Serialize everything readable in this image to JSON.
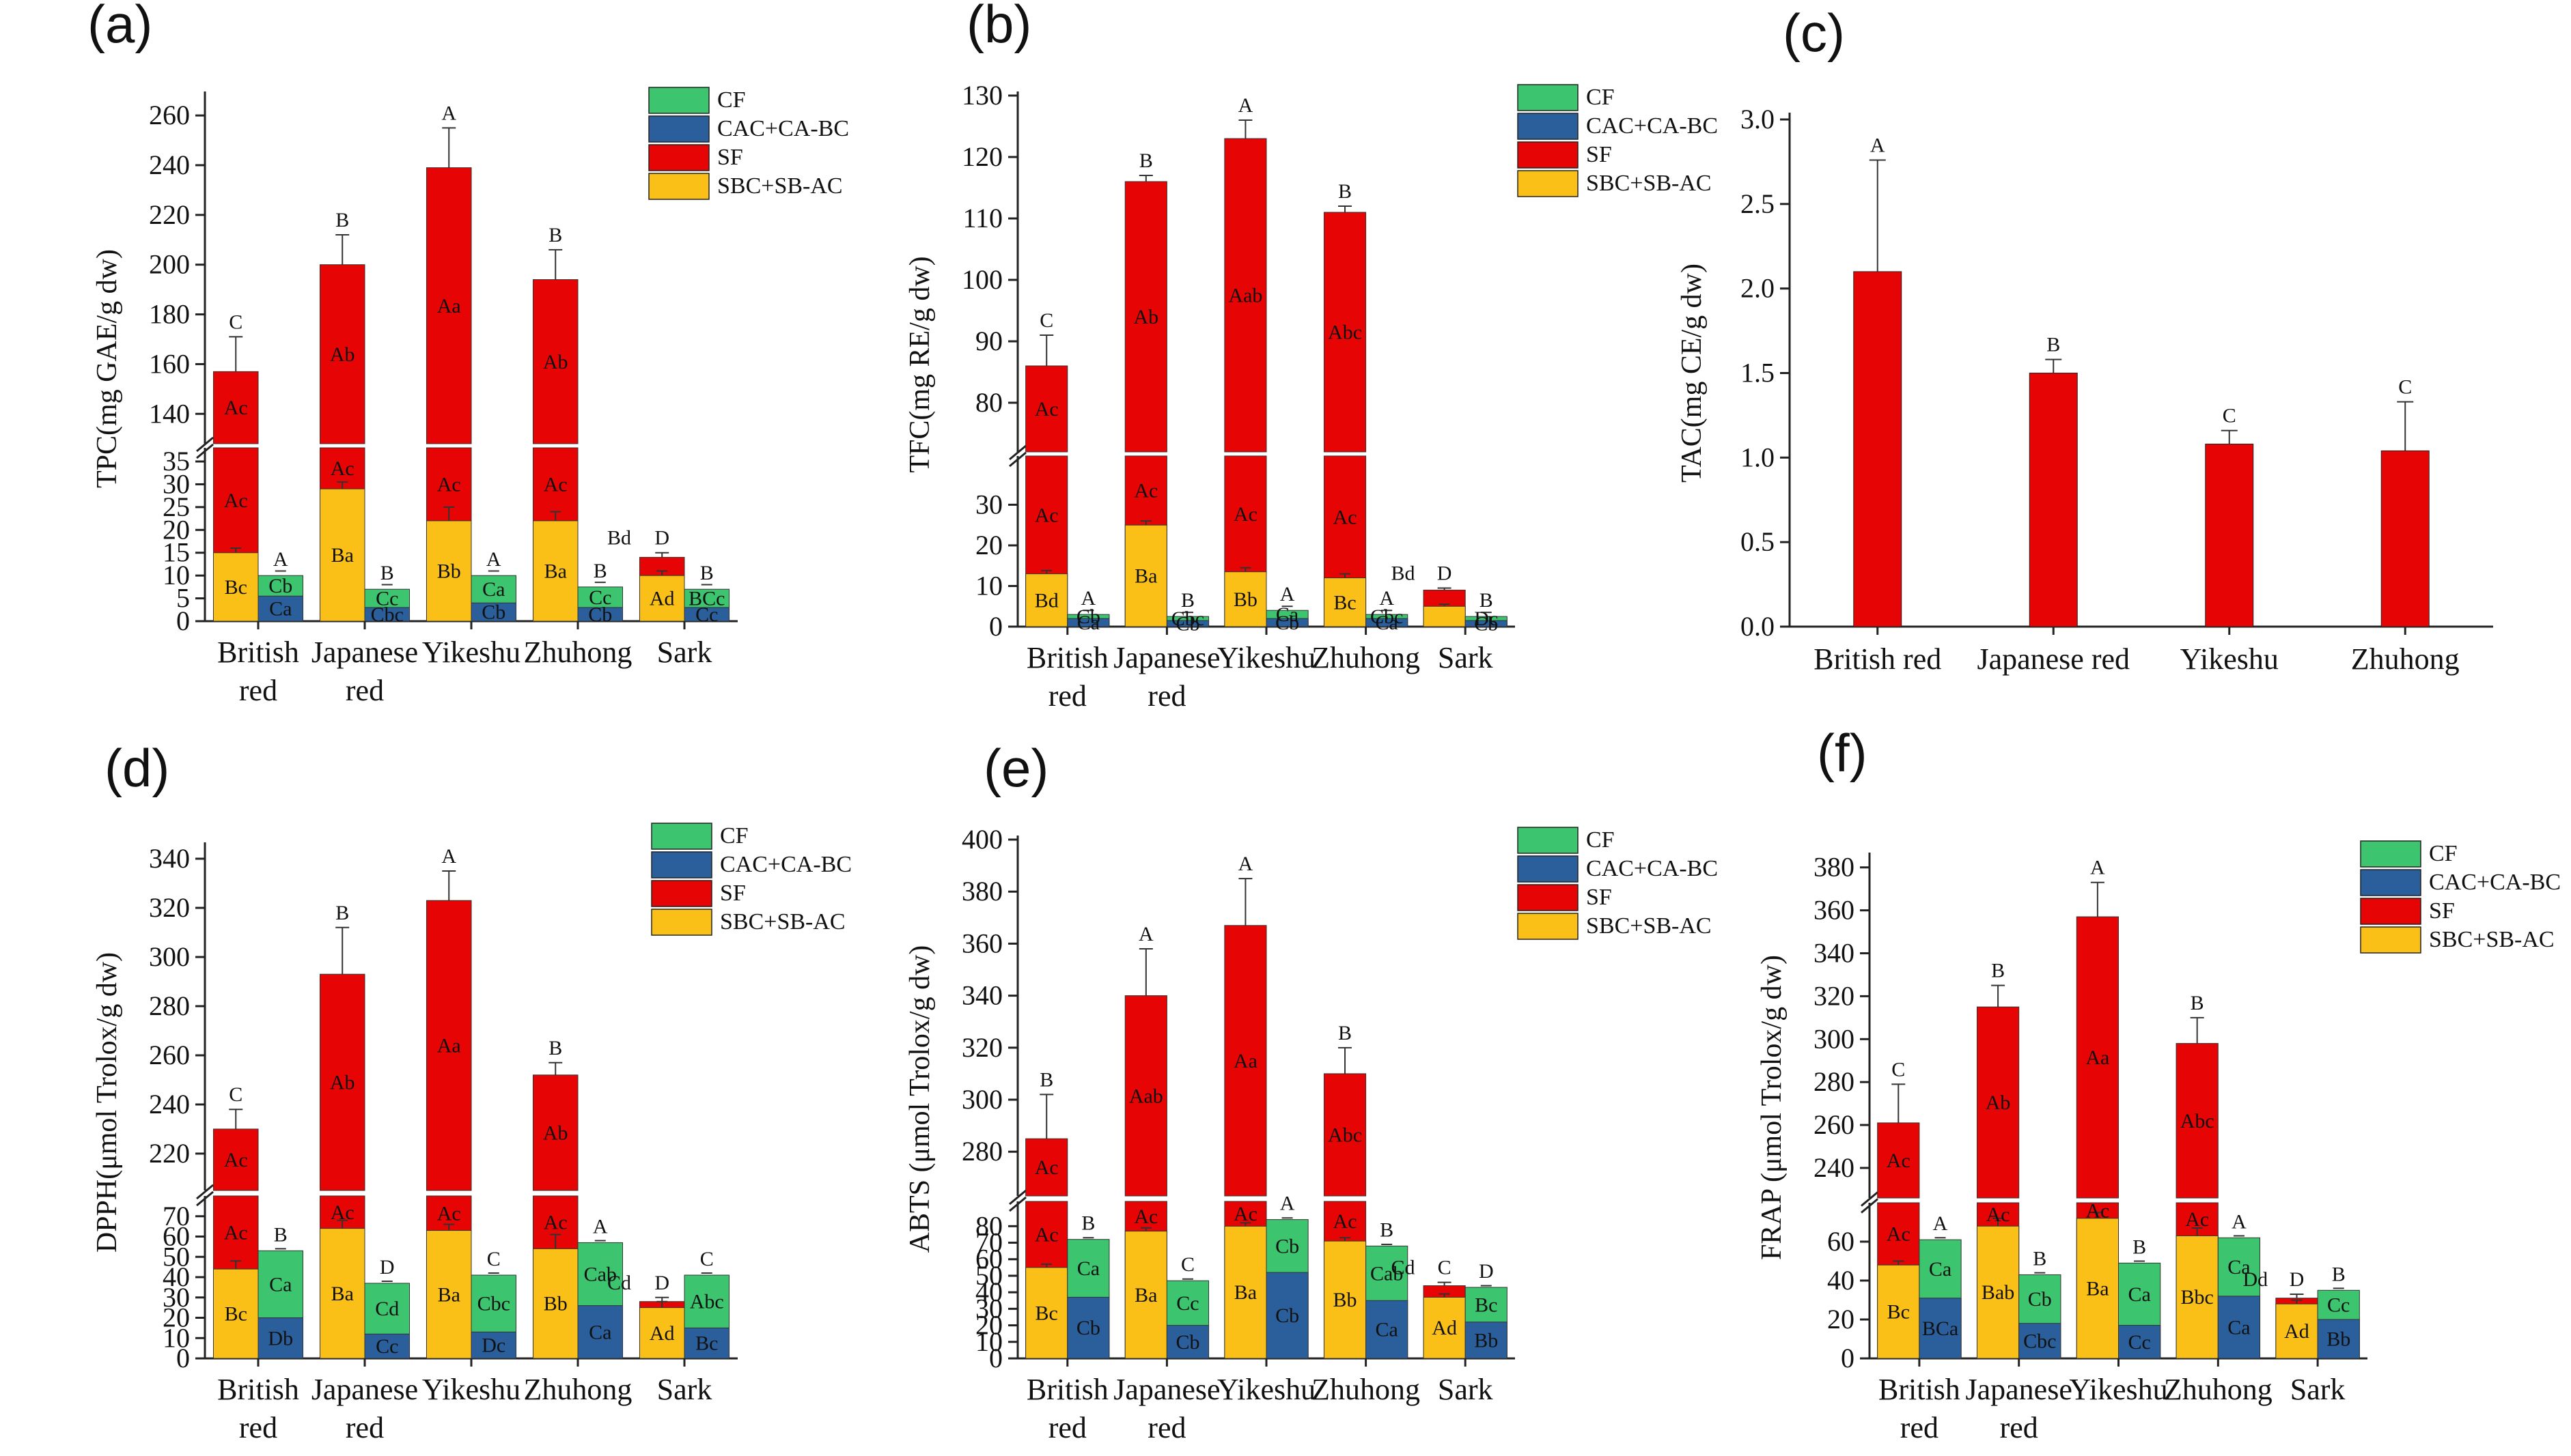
{
  "colors": {
    "CF": "#3cc46e",
    "CAC": "#2a5f9b",
    "SF": "#e60404",
    "SBC": "#fbc017"
  },
  "legend": [
    "CF",
    "CAC+CA-BC",
    "SF",
    "SBC+SB-AC"
  ],
  "chart_data": [
    {
      "panel": "(a)",
      "type": "bar",
      "stacked": true,
      "broken_axis": true,
      "ylabel": "TPC(mg GAE/g dw)",
      "categories": [
        "British red",
        "Japanese red",
        "Yikeshu",
        "Zhuhong",
        "Sark"
      ],
      "cat_lines": [
        [
          "British",
          "red"
        ],
        [
          "Japanese",
          "red"
        ],
        [
          "Yikeshu"
        ],
        [
          "Zhuhong"
        ],
        [
          "Sark"
        ]
      ],
      "lower": {
        "ylim": [
          0,
          38
        ],
        "ticks": [
          0,
          5,
          10,
          15,
          20,
          25,
          30,
          35
        ]
      },
      "upper": {
        "ylim": [
          128,
          268
        ],
        "ticks": [
          140,
          160,
          180,
          200,
          220,
          240,
          260
        ]
      },
      "series": [
        {
          "name": "SBC+SB-AC",
          "values": [
            15,
            29,
            22,
            22,
            10
          ]
        },
        {
          "name": "SF",
          "values": [
            157,
            200,
            239,
            194,
            14
          ]
        },
        {
          "name": "CAC+CA-BC",
          "values": [
            5.5,
            3,
            4,
            3,
            3
          ]
        },
        {
          "name": "CF",
          "values": [
            10,
            7,
            10,
            7.5,
            7
          ]
        }
      ],
      "top_errors": [
        14,
        12,
        16,
        12,
        1
      ],
      "sb_errors": [
        1,
        1.5,
        3,
        2,
        1
      ],
      "top_letters": [
        "C",
        "B",
        "A",
        "B",
        "D"
      ],
      "c_top_letters": [
        "A",
        "B",
        "A",
        "B",
        "B"
      ],
      "sf_letters": [
        "Ac",
        "Ab",
        "Aa",
        "Ab",
        ""
      ],
      "sb_letters": [
        "Bc",
        "Ba",
        "Bb",
        "Ba",
        "Ad"
      ],
      "cf_letters": [
        "Cb",
        "Cc",
        "Ca",
        "Cc",
        "BCc"
      ],
      "cac_letters": [
        "Ca",
        "Cbc",
        "Cb",
        "Cb",
        "Cc"
      ],
      "extra_letters": [
        "",
        "",
        "",
        "",
        "Bd"
      ]
    },
    {
      "panel": "(b)",
      "type": "bar",
      "stacked": true,
      "broken_axis": true,
      "ylabel": "TFC(mg RE/g dw)",
      "categories": [
        "British red",
        "Japanese red",
        "Yikeshu",
        "Zhuhong",
        "Sark"
      ],
      "cat_lines": [
        [
          "British",
          "red"
        ],
        [
          "Japanese",
          "red"
        ],
        [
          "Yikeshu"
        ],
        [
          "Zhuhong"
        ],
        [
          "Sark"
        ]
      ],
      "lower": {
        "ylim": [
          0,
          42
        ],
        "ticks": [
          0,
          10,
          20,
          30
        ]
      },
      "upper": {
        "ylim": [
          72,
          130
        ],
        "ticks": [
          80,
          90,
          100,
          110,
          120,
          130
        ]
      },
      "series": [
        {
          "name": "SBC+SB-AC",
          "values": [
            13,
            25,
            13.5,
            12,
            5
          ]
        },
        {
          "name": "SF",
          "values": [
            86,
            116,
            123,
            111,
            9
          ]
        },
        {
          "name": "CAC+CA-BC",
          "values": [
            2,
            1.5,
            2,
            2,
            1.5
          ]
        },
        {
          "name": "CF",
          "values": [
            3,
            2.5,
            4,
            3,
            2.5
          ]
        }
      ],
      "top_errors": [
        5,
        1,
        3,
        1,
        0.5
      ],
      "sb_errors": [
        0.8,
        1,
        1,
        1,
        0.5
      ],
      "top_letters": [
        "C",
        "B",
        "A",
        "B",
        "D"
      ],
      "c_top_letters": [
        "A",
        "B",
        "A",
        "A",
        "B"
      ],
      "sf_letters": [
        "Ac",
        "Ab",
        "Aab",
        "Abc",
        ""
      ],
      "sb_letters": [
        "Bd",
        "Ba",
        "Bb",
        "Bc",
        ""
      ],
      "cf_letters": [
        "Cb",
        "Cbc",
        "Ca",
        "Cbc",
        "Dc"
      ],
      "cac_letters": [
        "Ca",
        "Cb",
        "Cb",
        "Ca",
        "Cb"
      ],
      "extra_letters": [
        "",
        "",
        "",
        "",
        "Bd"
      ]
    },
    {
      "panel": "(c)",
      "type": "bar",
      "ylabel": "TAC(mg CE/g dw)",
      "categories": [
        "British red",
        "Japanese red",
        "Yikeshu",
        "Zhuhong"
      ],
      "ylim": [
        0,
        3.0
      ],
      "ticks": [
        0.0,
        0.5,
        1.0,
        1.5,
        2.0,
        2.5,
        3.0
      ],
      "values": [
        2.1,
        1.5,
        1.08,
        1.04
      ],
      "errors": [
        0.66,
        0.08,
        0.08,
        0.29
      ],
      "letters": [
        "A",
        "B",
        "C",
        "C"
      ]
    },
    {
      "panel": "(d)",
      "type": "bar",
      "stacked": true,
      "broken_axis": true,
      "ylabel": "DPPH(μmol Trolox/g dw)",
      "categories": [
        "British red",
        "Japanese red",
        "Yikeshu",
        "Zhuhong",
        "Sark"
      ],
      "cat_lines": [
        [
          "British",
          "red"
        ],
        [
          "Japanese",
          "red"
        ],
        [
          "Yikeshu"
        ],
        [
          "Zhuhong"
        ],
        [
          "Sark"
        ]
      ],
      "lower": {
        "ylim": [
          0,
          80
        ],
        "ticks": [
          0,
          10,
          20,
          30,
          40,
          50,
          60,
          70
        ]
      },
      "upper": {
        "ylim": [
          205,
          345
        ],
        "ticks": [
          220,
          240,
          260,
          280,
          300,
          320,
          340
        ]
      },
      "series": [
        {
          "name": "SBC+SB-AC",
          "values": [
            44,
            64,
            63,
            54,
            25
          ]
        },
        {
          "name": "SF",
          "values": [
            230,
            293,
            323,
            252,
            28
          ]
        },
        {
          "name": "CAC+CA-BC",
          "values": [
            20,
            12,
            13,
            26,
            15
          ]
        },
        {
          "name": "CF",
          "values": [
            53,
            37,
            41,
            57,
            41
          ]
        }
      ],
      "top_errors": [
        8,
        19,
        12,
        5,
        2
      ],
      "sb_errors": [
        4,
        4,
        3,
        7,
        3
      ],
      "top_letters": [
        "C",
        "B",
        "A",
        "B",
        "D"
      ],
      "c_top_letters": [
        "B",
        "D",
        "C",
        "A",
        "C"
      ],
      "sf_letters": [
        "Ac",
        "Ab",
        "Aa",
        "Ab",
        ""
      ],
      "sb_letters": [
        "Bc",
        "Ba",
        "Ba",
        "Bb",
        "Ad"
      ],
      "cf_letters": [
        "Ca",
        "Cd",
        "Cbc",
        "Cab",
        "Abc"
      ],
      "cac_letters": [
        "Db",
        "Cc",
        "Dc",
        "Ca",
        "Bc"
      ],
      "extra_letters": [
        "",
        "",
        "",
        "",
        "Cd"
      ]
    },
    {
      "panel": "(e)",
      "type": "bar",
      "stacked": true,
      "broken_axis": true,
      "ylabel": "ABTS (μmol Trolox/g dw)",
      "categories": [
        "British red",
        "Japanese red",
        "Yikeshu",
        "Zhuhong",
        "Sark"
      ],
      "cat_lines": [
        [
          "British",
          "red"
        ],
        [
          "Japanese",
          "red"
        ],
        [
          "Yikeshu"
        ],
        [
          "Zhuhong"
        ],
        [
          "Sark"
        ]
      ],
      "lower": {
        "ylim": [
          0,
          95
        ],
        "ticks": [
          0,
          10,
          20,
          30,
          40,
          50,
          60,
          70,
          80
        ]
      },
      "upper": {
        "ylim": [
          263,
          400
        ],
        "ticks": [
          280,
          300,
          320,
          340,
          360,
          380,
          400
        ]
      },
      "series": [
        {
          "name": "SBC+SB-AC",
          "values": [
            55,
            77,
            80,
            71,
            37
          ]
        },
        {
          "name": "SF",
          "values": [
            285,
            340,
            367,
            310,
            44
          ]
        },
        {
          "name": "CAC+CA-BC",
          "values": [
            37,
            20,
            52,
            35,
            22
          ]
        },
        {
          "name": "CF",
          "values": [
            72,
            47,
            84,
            68,
            43
          ]
        }
      ],
      "top_errors": [
        17,
        18,
        18,
        10,
        2
      ],
      "sb_errors": [
        2,
        2,
        2,
        2,
        2
      ],
      "top_letters": [
        "B",
        "A",
        "A",
        "B",
        "C"
      ],
      "c_top_letters": [
        "B",
        "C",
        "A",
        "B",
        "D"
      ],
      "sf_letters": [
        "Ac",
        "Aab",
        "Aa",
        "Abc",
        ""
      ],
      "sb_letters": [
        "Bc",
        "Ba",
        "Ba",
        "Bb",
        "Ad"
      ],
      "cf_letters": [
        "Ca",
        "Cc",
        "Cb",
        "Cab",
        "Bc"
      ],
      "cac_letters": [
        "Cb",
        "Cb",
        "Cb",
        "Ca",
        "Bb"
      ],
      "extra_letters": [
        "",
        "",
        "",
        "",
        "Cd"
      ]
    },
    {
      "panel": "(f)",
      "type": "bar",
      "stacked": true,
      "broken_axis": true,
      "ylabel": "FRAP (μmol Trolox/g dw)",
      "categories": [
        "British red",
        "Japanese red",
        "Yikeshu",
        "Zhuhong",
        "Sark"
      ],
      "cat_lines": [
        [
          "British",
          "red"
        ],
        [
          "Japanese",
          "red"
        ],
        [
          "Yikeshu"
        ],
        [
          "Zhuhong"
        ],
        [
          "Sark"
        ]
      ],
      "lower": {
        "ylim": [
          0,
          80
        ],
        "ticks": [
          0,
          20,
          40,
          60
        ]
      },
      "upper": {
        "ylim": [
          226,
          385
        ],
        "ticks": [
          240,
          260,
          280,
          300,
          320,
          340,
          360,
          380
        ]
      },
      "series": [
        {
          "name": "SBC+SB-AC",
          "values": [
            48,
            68,
            72,
            63,
            28
          ]
        },
        {
          "name": "SF",
          "values": [
            261,
            315,
            357,
            298,
            31
          ]
        },
        {
          "name": "CAC+CA-BC",
          "values": [
            31,
            18,
            17,
            32,
            20
          ]
        },
        {
          "name": "CF",
          "values": [
            61,
            43,
            49,
            62,
            35
          ]
        }
      ],
      "top_errors": [
        18,
        10,
        16,
        12,
        2
      ],
      "sb_errors": [
        2,
        4,
        3,
        4,
        2
      ],
      "top_letters": [
        "C",
        "B",
        "A",
        "B",
        "D"
      ],
      "c_top_letters": [
        "A",
        "B",
        "B",
        "A",
        "B"
      ],
      "sf_letters": [
        "Ac",
        "Ab",
        "Aa",
        "Abc",
        ""
      ],
      "sb_letters": [
        "Bc",
        "Bab",
        "Ba",
        "Bbc",
        "Ad"
      ],
      "cf_letters": [
        "Ca",
        "Cb",
        "Ca",
        "Ca",
        "Cc"
      ],
      "cac_letters": [
        "BCa",
        "Cbc",
        "Cc",
        "Ca",
        "Bb"
      ],
      "extra_letters": [
        "",
        "",
        "",
        "",
        "Dd"
      ]
    }
  ]
}
